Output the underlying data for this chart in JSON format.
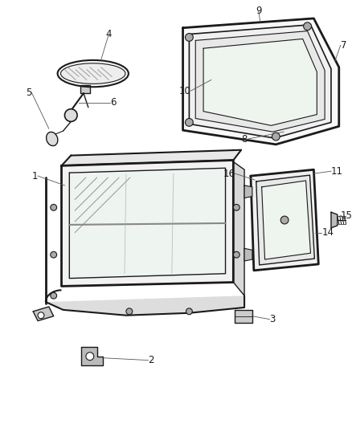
{
  "bg_color": "#ffffff",
  "fig_width": 4.39,
  "fig_height": 5.33,
  "dpi": 100,
  "line_color": "#1a1a1a",
  "label_fontsize": 8.5,
  "callout_color": "#555555"
}
